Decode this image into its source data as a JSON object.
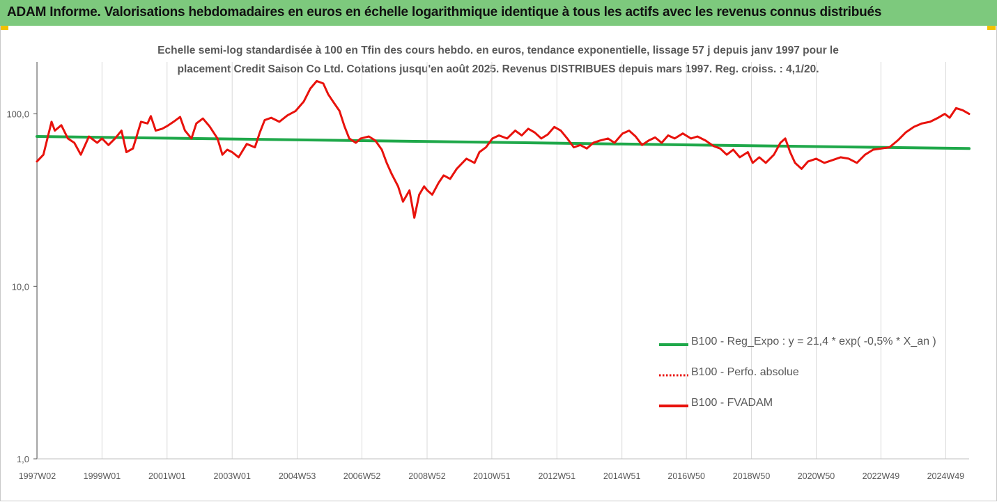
{
  "header": {
    "title": "ADAM Informe. Valorisations hebdomadaires en euros en échelle logarithmique identique à tous les actifs avec les revenus connus distribués"
  },
  "colors": {
    "banner": "#7dc97d",
    "trend": "#1fa84a",
    "price": "#e8120c",
    "axis": "#595959"
  },
  "chart_data": {
    "type": "line",
    "title_lines": [
      "Echelle semi-log standardisée à 100 en Tfin des cours hebdo. en euros, tendance exponentielle, lissage 57 j depuis janv 1997 pour le",
      "placement Credit Saison Co Ltd. Cotations jusqu'en août 2025. Revenus DISTRIBUES depuis mars 1997. Reg. croiss. : 4,1/20."
    ],
    "y_scale": "log",
    "ylim": [
      1,
      200
    ],
    "y_ticks": [
      1,
      10,
      100
    ],
    "y_tick_labels": [
      "1,0",
      "10,0",
      "100,0"
    ],
    "xlim": [
      1997.0,
      2025.65
    ],
    "x_tick_labels": [
      "1997W02",
      "1999W01",
      "2001W01",
      "2003W01",
      "2004W53",
      "2006W52",
      "2008W52",
      "2010W51",
      "2012W51",
      "2014W51",
      "2016W50",
      "2018W50",
      "2020W50",
      "2022W49",
      "2024W49"
    ],
    "x_tick_positions": [
      1997.01,
      1999.0,
      2001.0,
      2003.0,
      2005.0,
      2006.99,
      2008.99,
      2010.98,
      2012.98,
      2014.98,
      2016.96,
      2018.96,
      2020.95,
      2022.94,
      2024.93
    ],
    "legend_position": "right",
    "grid": "vertical",
    "series": [
      {
        "name": "B100 - Reg_Expo : y = 21,4 * exp( -0,5% *  X_an )",
        "style": "solid",
        "color": "#1fa84a",
        "x": [
          1997.0,
          2025.65
        ],
        "y": [
          74,
          63
        ]
      },
      {
        "name": "B100 - Perfo. absolue",
        "style": "dotted",
        "color": "#e8120c",
        "x": [],
        "y": []
      },
      {
        "name": "B100 - FVADAM",
        "style": "solid",
        "color": "#e8120c",
        "x": [
          1997.0,
          1997.2,
          1997.45,
          1997.55,
          1997.75,
          1997.95,
          1998.15,
          1998.35,
          1998.6,
          1998.85,
          1999.0,
          1999.2,
          1999.4,
          1999.6,
          1999.75,
          1999.95,
          2000.2,
          2000.4,
          2000.5,
          2000.65,
          2000.85,
          2001.0,
          2001.2,
          2001.4,
          2001.55,
          2001.75,
          2001.9,
          2002.1,
          2002.3,
          2002.55,
          2002.7,
          2002.85,
          2003.0,
          2003.2,
          2003.45,
          2003.7,
          2003.85,
          2004.0,
          2004.2,
          2004.45,
          2004.7,
          2004.95,
          2005.2,
          2005.4,
          2005.6,
          2005.8,
          2005.95,
          2006.1,
          2006.3,
          2006.45,
          2006.6,
          2006.8,
          2006.95,
          2007.2,
          2007.4,
          2007.6,
          2007.75,
          2007.9,
          2008.1,
          2008.25,
          2008.45,
          2008.6,
          2008.75,
          2008.9,
          2009.0,
          2009.15,
          2009.35,
          2009.5,
          2009.7,
          2009.9,
          2010.2,
          2010.45,
          2010.6,
          2010.8,
          2011.0,
          2011.2,
          2011.45,
          2011.7,
          2011.9,
          2012.1,
          2012.3,
          2012.5,
          2012.7,
          2012.9,
          2013.1,
          2013.3,
          2013.5,
          2013.7,
          2013.9,
          2014.1,
          2014.3,
          2014.55,
          2014.75,
          2015.0,
          2015.2,
          2015.4,
          2015.6,
          2015.8,
          2016.0,
          2016.2,
          2016.4,
          2016.6,
          2016.85,
          2017.1,
          2017.3,
          2017.55,
          2017.8,
          2018.0,
          2018.2,
          2018.4,
          2018.6,
          2018.85,
          2019.0,
          2019.2,
          2019.4,
          2019.65,
          2019.85,
          2020.0,
          2020.15,
          2020.3,
          2020.5,
          2020.7,
          2020.95,
          2021.2,
          2021.45,
          2021.7,
          2021.95,
          2022.2,
          2022.45,
          2022.7,
          2022.95,
          2023.2,
          2023.45,
          2023.7,
          2023.95,
          2024.2,
          2024.45,
          2024.7,
          2024.9,
          2025.05,
          2025.25,
          2025.45,
          2025.65
        ],
        "y": [
          53,
          58,
          90,
          80,
          86,
          72,
          68,
          58,
          74,
          68,
          72,
          66,
          72,
          80,
          60,
          63,
          90,
          88,
          97,
          80,
          82,
          85,
          90,
          96,
          80,
          72,
          88,
          94,
          85,
          72,
          58,
          62,
          60,
          56,
          67,
          64,
          78,
          92,
          95,
          90,
          98,
          104,
          118,
          140,
          155,
          150,
          130,
          118,
          104,
          85,
          72,
          68,
          72,
          74,
          70,
          62,
          52,
          45,
          38,
          31,
          36,
          25,
          34,
          38,
          36,
          34,
          40,
          44,
          42,
          48,
          55,
          52,
          60,
          64,
          72,
          75,
          72,
          80,
          75,
          82,
          78,
          72,
          76,
          84,
          80,
          72,
          64,
          66,
          63,
          68,
          70,
          72,
          68,
          77,
          80,
          74,
          66,
          70,
          73,
          68,
          75,
          72,
          77,
          72,
          74,
          70,
          65,
          63,
          58,
          62,
          56,
          60,
          52,
          56,
          52,
          58,
          68,
          72,
          60,
          52,
          48,
          53,
          55,
          52,
          54,
          56,
          55,
          52,
          58,
          62,
          63,
          64,
          70,
          78,
          84,
          88,
          90,
          95,
          100,
          95,
          108,
          105,
          100
        ]
      }
    ]
  }
}
